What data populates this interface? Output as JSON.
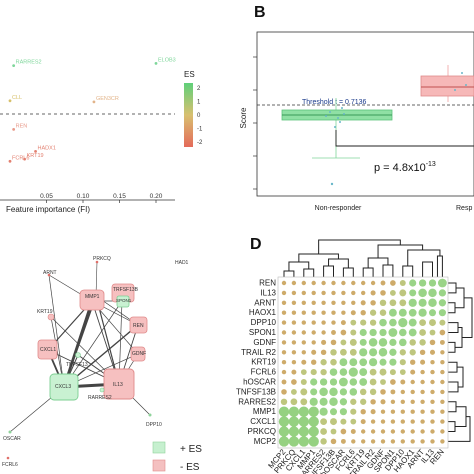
{
  "panels": {
    "A": {
      "xlabel": "Feature importance (FI)",
      "x_ticks": [
        "0.05",
        "0.10",
        "0.15",
        "0.20"
      ],
      "legend_title": "ES",
      "legend_ticks": [
        "2",
        "1",
        "0",
        "-1",
        "-2"
      ],
      "points": [
        {
          "label": "RARRES2",
          "x": 0.005,
          "y": 2.2,
          "color": "#7ed69a"
        },
        {
          "label": "ELOB3",
          "x": 0.2,
          "y": 2.3,
          "color": "#7ed69a"
        },
        {
          "label": "CLL",
          "x": 0.0,
          "y": 0.6,
          "color": "#d7c06a"
        },
        {
          "label": "GEN3CR",
          "x": 0.115,
          "y": 0.55,
          "color": "#e2b48a"
        },
        {
          "label": "REN",
          "x": 0.005,
          "y": -0.7,
          "color": "#e89a8a"
        },
        {
          "label": "HADX1",
          "x": 0.035,
          "y": -1.7,
          "color": "#e38070"
        },
        {
          "label": "KRT19",
          "x": 0.02,
          "y": -2.05,
          "color": "#e38070"
        },
        {
          "label": "FCRL6",
          "x": 0.0,
          "y": -2.15,
          "color": "#e38070"
        }
      ]
    },
    "B": {
      "label": "B",
      "ylabel": "Score",
      "threshold_label": "Threshold t = 0.7136",
      "pvalue_prefix": "p = 4.8x10",
      "pvalue_exp": "-13",
      "categories": [
        "Non-responder",
        "Resp"
      ]
    },
    "C": {
      "nodes": [
        "ARNT",
        "PRKCQ",
        "HAD1",
        "MMP1",
        "TRFSF13B",
        "SPON1",
        "KRT19",
        "REN",
        "CXCL1",
        "GDNF",
        "TNFSF13",
        "CXCL3",
        "IL13",
        "RARRES2",
        "DPP10",
        "OSCAR",
        "FCRL6"
      ],
      "legend": [
        {
          "label": "+ ES",
          "color": "#c6f0cf"
        },
        {
          "label": "- ES",
          "color": "#f4c0c0"
        }
      ]
    },
    "D": {
      "label": "D",
      "rows": [
        "REN",
        "IL13",
        "ARNT",
        "HAOX1",
        "DPP10",
        "SPON1",
        "GDNF",
        "TRAIL R2",
        "KRT19",
        "FCRL6",
        "hOSCAR",
        "TNFSF13B",
        "RARRES2",
        "MMP1",
        "CXCL1",
        "PRKCQ",
        "MCP2"
      ],
      "cols": [
        "MCP2",
        "PRKCQ",
        "CXCL1",
        "MMP1",
        "RARRES2",
        "TNFSF13B",
        "hOSCAR",
        "FCRL6",
        "KRT19",
        "TRAIL R2",
        "GDNF",
        "SPON1",
        "DPP10",
        "HAOX1",
        "ARNT",
        "IL13",
        "REN"
      ]
    }
  },
  "colors": {
    "green": "#8fd39b",
    "red": "#f09a9a",
    "dot_low": "#c9a25a",
    "dot_high": "#8fcf7a"
  }
}
